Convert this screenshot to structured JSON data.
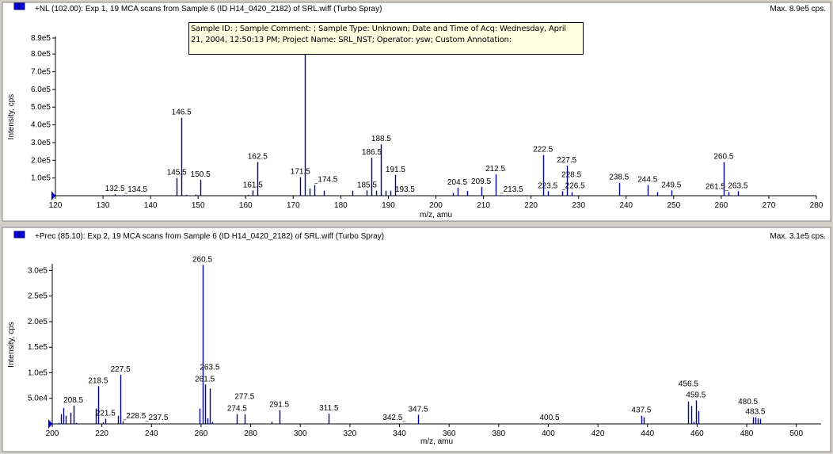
{
  "colors": {
    "peak": "#00008b",
    "marker": "#0000cc",
    "panel_bg": "#ffffff",
    "frame": "#d4d0c8"
  },
  "tooltip": {
    "line1": "Sample ID:  ;  Sample Comment:  ;  Sample Type:  Unknown;  Date and Time of Acq:  Wednesday, April",
    "line2": "21, 2004, 12:50:13 PM;  Project Name:  SRL_NST;  Operator:  ysw;  Custom Annotation:"
  },
  "chart_data": [
    {
      "type": "bar",
      "title": "+NL (102.00): Exp 1, 19 MCA scans from Sample 6 (ID H14_0420_2182) of SRL.wiff (Turbo Spray)",
      "max_label": "Max. 8.9e5 cps.",
      "xlabel": "m/z, amu",
      "ylabel": "Intensity, cps",
      "xlim": [
        120,
        280
      ],
      "ylim": [
        0,
        890000
      ],
      "x_ticks": [
        "120",
        "130",
        "140",
        "150",
        "160",
        "170",
        "180",
        "190",
        "200",
        "210",
        "220",
        "230",
        "240",
        "250",
        "260",
        "270",
        "280"
      ],
      "y_ticks": [
        {
          "v": 100000,
          "label": "1.0e5"
        },
        {
          "v": 200000,
          "label": "2.0e5"
        },
        {
          "v": 300000,
          "label": "3.0e5"
        },
        {
          "v": 400000,
          "label": "4.0e5"
        },
        {
          "v": 500000,
          "label": "5.0e5"
        },
        {
          "v": 600000,
          "label": "6.0e5"
        },
        {
          "v": 700000,
          "label": "7.0e5"
        },
        {
          "v": 800000,
          "label": "8.0e5"
        },
        {
          "v": 890000,
          "label": "8.9e5"
        }
      ],
      "peaks": [
        [
          132.5,
          8000
        ],
        [
          134.5,
          3000
        ],
        [
          145.5,
          100000
        ],
        [
          146.5,
          440000
        ],
        [
          147.5,
          5000
        ],
        [
          149.5,
          7000
        ],
        [
          150.5,
          90000
        ],
        [
          160.5,
          5000
        ],
        [
          161.5,
          30000
        ],
        [
          162.5,
          190000
        ],
        [
          171.5,
          105000
        ],
        [
          172.5,
          890000
        ],
        [
          173.5,
          40000
        ],
        [
          174.5,
          60000
        ],
        [
          176.5,
          28000
        ],
        [
          182.5,
          28000
        ],
        [
          185.5,
          30000
        ],
        [
          186.5,
          215000
        ],
        [
          187.5,
          28000
        ],
        [
          188.5,
          290000
        ],
        [
          189.5,
          28000
        ],
        [
          190.5,
          28000
        ],
        [
          191.5,
          117000
        ],
        [
          193.5,
          3000
        ],
        [
          203.5,
          15000
        ],
        [
          204.5,
          45000
        ],
        [
          206.5,
          27000
        ],
        [
          209.5,
          50000
        ],
        [
          212.5,
          120000
        ],
        [
          213.5,
          3000
        ],
        [
          222.5,
          230000
        ],
        [
          223.5,
          25000
        ],
        [
          226.5,
          25000
        ],
        [
          227.5,
          170000
        ],
        [
          228.5,
          20000
        ],
        [
          238.5,
          73000
        ],
        [
          244.5,
          60000
        ],
        [
          246.5,
          20000
        ],
        [
          249.5,
          30000
        ],
        [
          260.5,
          190000
        ],
        [
          261.5,
          20000
        ],
        [
          263.5,
          25000
        ]
      ],
      "labels": [
        "132.5",
        "134.5",
        "145.5",
        "146.5",
        "150.5",
        "161.5",
        "162.5",
        "171.5",
        "174.5",
        "185.5",
        "186.5",
        "188.5",
        "191.5",
        "193.5",
        "204.5",
        "209.5",
        "212.5",
        "213.5",
        "222.5",
        "223.5",
        "226.5",
        "227.5",
        "228.5",
        "238.5",
        "244.5",
        "249.5",
        "260.5",
        "261.5",
        "263.5"
      ]
    },
    {
      "type": "bar",
      "title": "+Prec (85.10): Exp 2, 19 MCA scans from Sample 6 (ID H14_0420_2182) of SRL.wiff (Turbo Spray)",
      "max_label": "Max. 3.1e5 cps.",
      "xlabel": "m/z, amu",
      "ylabel": "Intensity, cps",
      "xlim": [
        200,
        510
      ],
      "ylim": [
        0,
        310000
      ],
      "x_ticks": [
        "200",
        "220",
        "240",
        "260",
        "280",
        "300",
        "320",
        "340",
        "360",
        "380",
        "400",
        "420",
        "440",
        "460",
        "480",
        "500"
      ],
      "y_ticks": [
        {
          "v": 50000,
          "label": "5.0e4"
        },
        {
          "v": 100000,
          "label": "1.0e5"
        },
        {
          "v": 150000,
          "label": "1.5e5"
        },
        {
          "v": 200000,
          "label": "2.0e5"
        },
        {
          "v": 250000,
          "label": "2.5e5"
        },
        {
          "v": 300000,
          "label": "3.0e5"
        }
      ],
      "peaks": [
        [
          202.5,
          2000
        ],
        [
          203.5,
          19000
        ],
        [
          204.5,
          31000
        ],
        [
          205.5,
          16000
        ],
        [
          207.5,
          22000
        ],
        [
          208.5,
          36000
        ],
        [
          209.5,
          2000
        ],
        [
          217.5,
          30000
        ],
        [
          218.5,
          74000
        ],
        [
          220.5,
          3000
        ],
        [
          221.5,
          10000
        ],
        [
          226.5,
          16000
        ],
        [
          227.5,
          96000
        ],
        [
          228.5,
          5000
        ],
        [
          237.5,
          1000
        ],
        [
          259.5,
          30000
        ],
        [
          260.5,
          311000
        ],
        [
          261.5,
          77000
        ],
        [
          262.5,
          11000
        ],
        [
          263.5,
          69000
        ],
        [
          264.5,
          4000
        ],
        [
          274.5,
          19000
        ],
        [
          277.5,
          19000
        ],
        [
          288.5,
          4000
        ],
        [
          291.5,
          27000
        ],
        [
          311.5,
          20000
        ],
        [
          342.5,
          1000
        ],
        [
          347.5,
          18000
        ],
        [
          400.5,
          1000
        ],
        [
          437.5,
          16000
        ],
        [
          438.5,
          13000
        ],
        [
          456.5,
          44000
        ],
        [
          457.5,
          35000
        ],
        [
          458.5,
          4000
        ],
        [
          459.5,
          46000
        ],
        [
          460.5,
          25000
        ],
        [
          480.5,
          1000
        ],
        [
          482.5,
          13000
        ],
        [
          483.5,
          13000
        ],
        [
          484.5,
          11000
        ],
        [
          485.5,
          10000
        ]
      ],
      "labels": [
        "208.5",
        "218.5",
        "221.5",
        "227.5",
        "228.5",
        "237.5",
        "260.5",
        "261.5",
        "263.5",
        "274.5",
        "277.5",
        "291.5",
        "311.5",
        "342.5",
        "347.5",
        "400.5",
        "437.5",
        "456.5",
        "459.5",
        "480.5",
        "483.5"
      ]
    }
  ]
}
